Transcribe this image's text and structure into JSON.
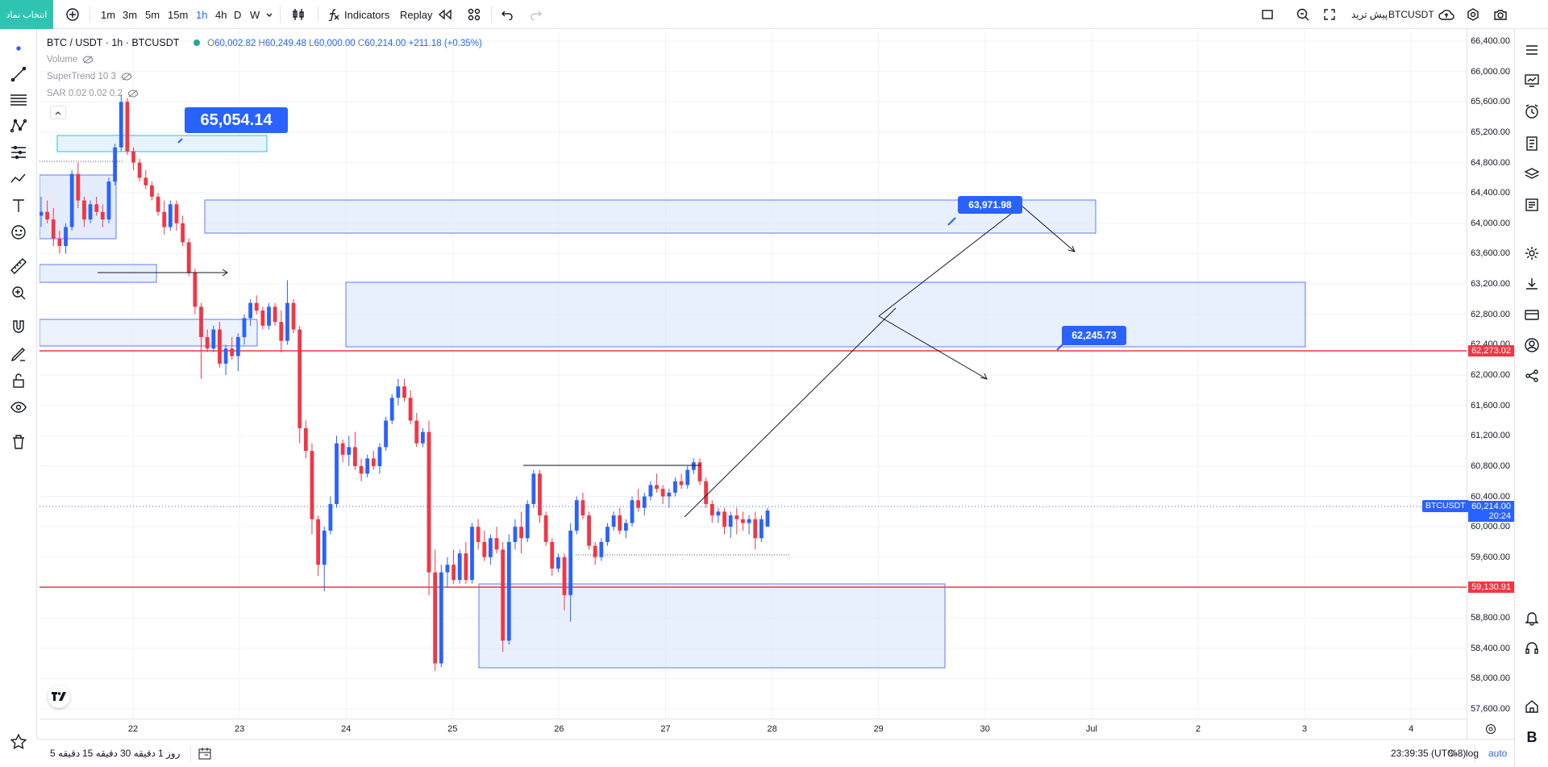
{
  "topbar": {
    "symbol_button": "انتخاب نماد",
    "intervals": [
      "1m",
      "3m",
      "5m",
      "15m",
      "1h",
      "4h",
      "D",
      "W"
    ],
    "active_interval": "1h",
    "indicators_label": "Indicators",
    "replay_label": "Replay",
    "pretrade_label": "پیش ترید",
    "symbol_right": "BTCUSDT"
  },
  "legend": {
    "symbol": "BTC / USDT · 1h · BTCUSDT",
    "o_label": "O",
    "o": "60,002.82",
    "h_label": "H",
    "h": "60,249.48",
    "l_label": "L",
    "l": "60,000.00",
    "c_label": "C",
    "c": "60,214.00",
    "change": "+211.18 (+0.35%)",
    "volume": "Volume",
    "supertrend": "SuperTrend 10 3",
    "sar": "SAR 0.02 0.02 0.2"
  },
  "price_axis": {
    "labels": [
      "66,400.00",
      "66,000.00",
      "65,600.00",
      "65,200.00",
      "64,800.00",
      "64,400.00",
      "64,000.00",
      "63,600.00",
      "63,200.00",
      "62,800.00",
      "62,400.00",
      "62,000.00",
      "61,600.00",
      "61,200.00",
      "60,800.00",
      "60,400.00",
      "60,000.00",
      "59,600.00",
      "59,200.00",
      "58,800.00",
      "58,400.00",
      "58,000.00",
      "57,600.00"
    ],
    "hline_top": "62,273.02",
    "hline_bottom": "59,130.91",
    "last_price": "60,214.00",
    "countdown": "20:24",
    "symbol_tag": "BTCUSDT"
  },
  "time_axis": {
    "labels": [
      "22",
      "23",
      "24",
      "25",
      "26",
      "27",
      "28",
      "29",
      "30",
      "Jul",
      "2",
      "3",
      "4"
    ]
  },
  "annotations": {
    "tag_1": "65,054.14",
    "tag_2": "63,971.98",
    "tag_3": "62,245.73"
  },
  "bottombar": {
    "ranges": [
      "5 دقیقه",
      "15 دقیقه",
      "30 دقیقه",
      "1 روز"
    ],
    "clock": "23:39:35 (UTC-8)",
    "percent": "%",
    "log": "log",
    "auto": "auto"
  },
  "colors": {
    "up": "#2962ff",
    "down": "#f23645",
    "zone_fill": "#dbe6fb",
    "zone_border": "#5c7cfa",
    "hline": "#f23645",
    "symbol_button_bg": "#2fc4b2"
  },
  "chart_data": {
    "type": "candlestick",
    "symbol": "BTCUSDT",
    "interval": "1h",
    "ylim": [
      57400,
      66600
    ],
    "x_ticks": [
      "22",
      "23",
      "24",
      "25",
      "26",
      "27",
      "28",
      "29",
      "30",
      "Jul",
      "2",
      "3",
      "4"
    ],
    "horizontal_lines": [
      62273.02,
      59130.91
    ],
    "last_price": 60214.0,
    "ohlc_last": {
      "o": 60002.82,
      "h": 60249.48,
      "l": 60000.0,
      "c": 60214.0
    },
    "tagged_levels": [
      65054.14,
      63971.98,
      62245.73
    ],
    "candles": [
      [
        64100,
        64350,
        63950,
        64150
      ],
      [
        64150,
        64300,
        64000,
        64050
      ],
      [
        64050,
        64200,
        63700,
        63800
      ],
      [
        63800,
        63900,
        63600,
        63700
      ],
      [
        63700,
        64000,
        63600,
        63950
      ],
      [
        63950,
        64700,
        63900,
        64650
      ],
      [
        64650,
        64800,
        64200,
        64300
      ],
      [
        64300,
        64350,
        63950,
        64050
      ],
      [
        64050,
        64300,
        64000,
        64250
      ],
      [
        64250,
        64350,
        64100,
        64150
      ],
      [
        64150,
        64250,
        63950,
        64050
      ],
      [
        64050,
        64600,
        64000,
        64550
      ],
      [
        64550,
        65050,
        64500,
        65000
      ],
      [
        65000,
        65700,
        64950,
        65600
      ],
      [
        65600,
        65650,
        64900,
        64950
      ],
      [
        64950,
        65000,
        64700,
        64800
      ],
      [
        64800,
        64850,
        64550,
        64600
      ],
      [
        64600,
        64700,
        64450,
        64500
      ],
      [
        64500,
        64550,
        64300,
        64350
      ],
      [
        64350,
        64400,
        64100,
        64150
      ],
      [
        64150,
        64300,
        63850,
        63950
      ],
      [
        63950,
        64300,
        63900,
        64250
      ],
      [
        64250,
        64300,
        63900,
        64000
      ],
      [
        64000,
        64100,
        63700,
        63750
      ],
      [
        63750,
        63800,
        63300,
        63350
      ],
      [
        63350,
        63400,
        62800,
        62900
      ],
      [
        62900,
        62950,
        61950,
        62500
      ],
      [
        62500,
        62600,
        62300,
        62350
      ],
      [
        62350,
        62650,
        62300,
        62600
      ],
      [
        62600,
        62700,
        62100,
        62150
      ],
      [
        62150,
        62400,
        62000,
        62350
      ],
      [
        62350,
        62500,
        62200,
        62250
      ],
      [
        62250,
        62550,
        62050,
        62500
      ],
      [
        62500,
        62800,
        62400,
        62750
      ],
      [
        62750,
        63000,
        62650,
        62950
      ],
      [
        62950,
        63050,
        62800,
        62850
      ],
      [
        62850,
        62900,
        62600,
        62650
      ],
      [
        62650,
        62950,
        62600,
        62900
      ],
      [
        62900,
        62950,
        62650,
        62700
      ],
      [
        62700,
        62850,
        62300,
        62450
      ],
      [
        62450,
        63250,
        62400,
        62950
      ],
      [
        62950,
        63000,
        62550,
        62600
      ],
      [
        62600,
        62650,
        61100,
        61300
      ],
      [
        61300,
        61400,
        60900,
        61000
      ],
      [
        61000,
        61100,
        59900,
        60100
      ],
      [
        60100,
        60150,
        59350,
        59500
      ],
      [
        59500,
        60000,
        59150,
        59950
      ],
      [
        59950,
        60400,
        59900,
        60300
      ],
      [
        60300,
        61200,
        60250,
        61100
      ],
      [
        61100,
        61150,
        60850,
        60950
      ],
      [
        60950,
        61200,
        60800,
        61050
      ],
      [
        61050,
        61250,
        60750,
        60800
      ],
      [
        60800,
        60900,
        60600,
        60700
      ],
      [
        60700,
        60950,
        60650,
        60900
      ],
      [
        60900,
        61000,
        60750,
        60800
      ],
      [
        60800,
        61100,
        60700,
        61050
      ],
      [
        61050,
        61450,
        61000,
        61400
      ],
      [
        61400,
        61750,
        61350,
        61700
      ],
      [
        61700,
        61950,
        61600,
        61850
      ],
      [
        61850,
        61950,
        61650,
        61700
      ],
      [
        61700,
        61800,
        61350,
        61400
      ],
      [
        61400,
        61500,
        61050,
        61100
      ],
      [
        61100,
        61300,
        61050,
        61250
      ],
      [
        61250,
        61400,
        59100,
        59400
      ],
      [
        59400,
        59700,
        58100,
        58200
      ],
      [
        58200,
        59500,
        58150,
        59400
      ],
      [
        59400,
        59600,
        59200,
        59500
      ],
      [
        59500,
        59700,
        59250,
        59300
      ],
      [
        59300,
        59700,
        59250,
        59650
      ],
      [
        59650,
        59800,
        59250,
        59300
      ],
      [
        59300,
        60050,
        59250,
        60000
      ],
      [
        60000,
        60100,
        59700,
        59800
      ],
      [
        59800,
        59950,
        59550,
        59600
      ],
      [
        59600,
        59900,
        59500,
        59850
      ],
      [
        59850,
        60000,
        59650,
        59700
      ],
      [
        59700,
        59800,
        58350,
        58500
      ],
      [
        58500,
        59900,
        58450,
        59800
      ],
      [
        59800,
        60100,
        59700,
        60000
      ],
      [
        60000,
        60200,
        59650,
        59850
      ],
      [
        59850,
        60350,
        59800,
        60300
      ],
      [
        60300,
        60750,
        60250,
        60700
      ],
      [
        60700,
        60750,
        60050,
        60150
      ],
      [
        60150,
        60200,
        59750,
        59800
      ],
      [
        59800,
        59850,
        59350,
        59450
      ],
      [
        59450,
        59650,
        59400,
        59600
      ],
      [
        59600,
        59650,
        58900,
        59100
      ],
      [
        59100,
        60050,
        58750,
        59950
      ],
      [
        59950,
        60400,
        59900,
        60350
      ],
      [
        60350,
        60450,
        60100,
        60150
      ],
      [
        60150,
        60200,
        59700,
        59750
      ],
      [
        59750,
        59800,
        59500,
        59600
      ],
      [
        59600,
        59850,
        59550,
        59800
      ],
      [
        59800,
        60050,
        59750,
        60000
      ],
      [
        60000,
        60200,
        59950,
        60150
      ],
      [
        60150,
        60250,
        59900,
        59950
      ],
      [
        59950,
        60100,
        59850,
        60050
      ],
      [
        60050,
        60400,
        60000,
        60350
      ],
      [
        60350,
        60500,
        60200,
        60250
      ],
      [
        60250,
        60450,
        60150,
        60400
      ],
      [
        60400,
        60600,
        60350,
        60550
      ],
      [
        60550,
        60700,
        60450,
        60500
      ],
      [
        60500,
        60550,
        60300,
        60400
      ],
      [
        60400,
        60500,
        60250,
        60450
      ],
      [
        60450,
        60650,
        60400,
        60600
      ],
      [
        60600,
        60700,
        60500,
        60550
      ],
      [
        60550,
        60800,
        60500,
        60750
      ],
      [
        60750,
        60900,
        60700,
        60850
      ],
      [
        60850,
        60900,
        60550,
        60600
      ],
      [
        60600,
        60650,
        60250,
        60300
      ],
      [
        60300,
        60350,
        60050,
        60150
      ],
      [
        60150,
        60250,
        60050,
        60200
      ],
      [
        60200,
        60250,
        59900,
        60000
      ],
      [
        60000,
        60200,
        59850,
        60150
      ],
      [
        60150,
        60250,
        59900,
        60100
      ],
      [
        60100,
        60200,
        59950,
        60050
      ],
      [
        60050,
        60150,
        59900,
        60100
      ],
      [
        60100,
        60200,
        59700,
        59850
      ],
      [
        59850,
        60150,
        59800,
        60100
      ],
      [
        60002.82,
        60249.48,
        60000,
        60214
      ]
    ]
  }
}
